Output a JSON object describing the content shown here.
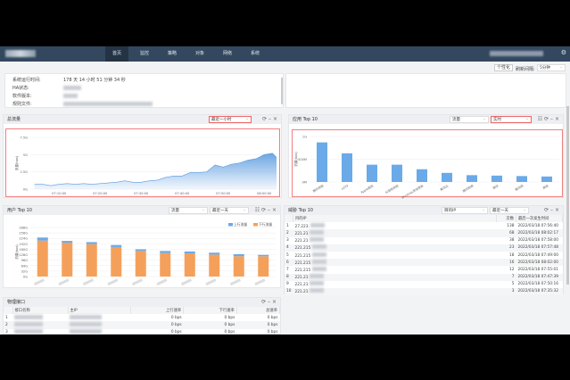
{
  "nav": {
    "items": [
      "首页",
      "监控",
      "策略",
      "对象",
      "网络",
      "系统"
    ],
    "active": 0
  },
  "toolbar": {
    "personalize": "个性化",
    "refresh_label": "刷新间隔:",
    "refresh_value": "5分钟"
  },
  "info": {
    "labels": [
      "系统运行时间:",
      "HA状态:",
      "软件版本:",
      "规则文件:"
    ],
    "uptime": "178 天 14 小时 51 分钟 34 秒"
  },
  "traffic": {
    "title": "总流量",
    "range": "最近一小时"
  },
  "apps": {
    "title": "应用 Top 10",
    "metric": "流量",
    "range": "实时"
  },
  "users": {
    "title": "用户 Top 10",
    "metric": "流量",
    "range": "最近一天"
  },
  "threats": {
    "title": "威胁 Top 10",
    "metric": "目的IP",
    "range": "最近一天",
    "columns": [
      "目的IP",
      "次数",
      "最后一次发生时间"
    ],
    "rows": [
      [
        "27.223.",
        "138",
        "2022/03/18 07:56:40"
      ],
      [
        "221.21",
        "68",
        "2022/03/18 08:02:17"
      ],
      [
        "221.21",
        "38",
        "2022/03/18 07:58:00"
      ],
      [
        "221.215",
        "23",
        "2022/03/18 07:57:48"
      ],
      [
        "221.215",
        "18",
        "2022/03/18 07:49:00"
      ],
      [
        "221.215",
        "16",
        "2022/03/18 08:02:00"
      ],
      [
        "221.215",
        "12",
        "2022/03/18 07:55:01"
      ],
      [
        "221.21",
        "7",
        "2022/03/18 07:47:39"
      ],
      [
        "221.21",
        "5",
        "2022/03/18 07:50:16"
      ],
      [
        "221.21",
        "3",
        "2022/03/18 07:35:32"
      ]
    ]
  },
  "interfaces": {
    "title": "物理接口",
    "columns": [
      "接口名称",
      "主IP",
      "上行速率",
      "下行速率",
      "总速率"
    ],
    "rows": [
      [
        "1",
        "0 bps",
        "0 bps",
        "0 bps"
      ],
      [
        "2",
        "0 bps",
        "0 bps",
        "0 bps"
      ],
      [
        "3",
        "0 bps",
        "0 bps",
        "0 bps"
      ]
    ]
  },
  "chart_data": [
    {
      "type": "area",
      "ylabel": "流量(bps)",
      "yticks": [
        "0G",
        "2.5G",
        "5G",
        "7.5G"
      ],
      "ylim": [
        0,
        7.5
      ],
      "xticks": [
        "07:10:00",
        "07:20:00",
        "07:30:00",
        "07:40:00",
        "07:50:00",
        "08:00:00"
      ],
      "x": [
        "07:04",
        "07:06",
        "07:08",
        "07:10",
        "07:12",
        "07:14",
        "07:16",
        "07:18",
        "07:20",
        "07:22",
        "07:24",
        "07:26",
        "07:28",
        "07:30",
        "07:32",
        "07:34",
        "07:36",
        "07:38",
        "07:40",
        "07:42",
        "07:44",
        "07:46",
        "07:48",
        "07:50",
        "07:52",
        "07:54",
        "07:56",
        "07:58",
        "08:00",
        "08:02",
        "08:03"
      ],
      "values": [
        0.7,
        0.7,
        0.5,
        0.7,
        0.8,
        0.7,
        0.8,
        0.7,
        0.8,
        0.9,
        1.0,
        1.2,
        1.0,
        1.0,
        1.2,
        1.3,
        1.7,
        1.9,
        1.9,
        2.4,
        2.4,
        2.5,
        3.5,
        3.2,
        3.6,
        3.8,
        4.2,
        4.4,
        5.0,
        5.2,
        4.6
      ],
      "color": "#5b9be0"
    },
    {
      "type": "bar",
      "ylabel": "流量(bps)",
      "yticks": [
        "0M",
        "500M",
        "1G"
      ],
      "ylim": [
        0,
        1000
      ],
      "categories": [
        "腾讯视频",
        "HTTP",
        "Apple服务",
        "抖音短视频",
        "Windows系统更新",
        "腾讯云",
        "腾讯新闻",
        "微信",
        "腾讯网",
        "其他"
      ],
      "values": [
        870,
        630,
        380,
        380,
        280,
        200,
        150,
        140,
        130,
        120
      ],
      "color": "#6aaae8"
    },
    {
      "type": "stacked-bar",
      "ylabel": "流量(bps)",
      "yticks": [
        "0G",
        "32G",
        "64G",
        "96G",
        "128G",
        "160G",
        "192G",
        "224G",
        "256G",
        "288G"
      ],
      "ylim": [
        0,
        288
      ],
      "legend": "top-right",
      "series": [
        {
          "name": "上行流量",
          "values": [
            18,
            10,
            12,
            12,
            10,
            12,
            11,
            11,
            12,
            8
          ],
          "color": "#6aaae8"
        },
        {
          "name": "下行流量",
          "values": [
            211,
            199,
            190,
            173,
            150,
            138,
            136,
            129,
            119,
            119
          ],
          "color": "#f5a05a"
        }
      ]
    }
  ]
}
